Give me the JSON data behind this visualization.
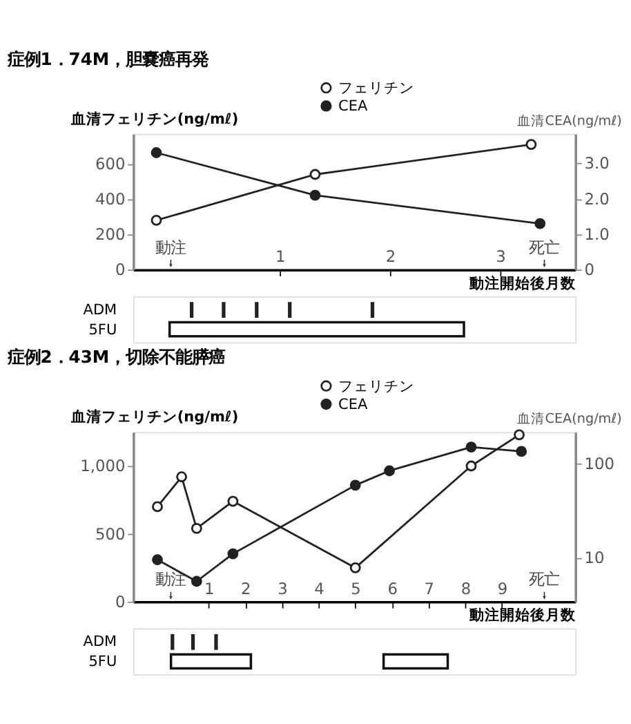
{
  "chart_data": [
    {
      "type": "line",
      "title": "症例1．74M，胆嚢癌再発",
      "ylabel": "血清フェリチン(ng/mℓ)",
      "y2label": "血清CEA(ng/mℓ)",
      "xlabel": "動注開始後月数",
      "xlim": [
        -0.33,
        3.68
      ],
      "xticks": [
        1,
        2,
        3
      ],
      "ylim": [
        0,
        770
      ],
      "yticks": [
        0,
        200,
        400,
        600
      ],
      "y2lim": [
        0,
        3.83
      ],
      "y2ticks": [
        0,
        {
          "value": 1,
          "label": "1.0"
        },
        {
          "value": 2,
          "label": "2.0"
        },
        {
          "value": 3,
          "label": "3.0"
        }
      ],
      "marker": "circle",
      "grid": false,
      "legend": "top",
      "line_style": "solid",
      "series": [
        {
          "name": "フェリチン",
          "color": "#222222",
          "x": [
            -0.12,
            1.32,
            3.28
          ],
          "values": [
            280,
            540,
            710
          ]
        },
        {
          "name": "CEA",
          "color": "#222222",
          "axis": "y2",
          "x": [
            -0.12,
            1.32,
            3.36
          ],
          "values": [
            3.3,
            2.1,
            1.3
          ]
        }
      ],
      "annotations": [
        "動注",
        "死亡"
      ]
    },
    {
      "type": "bar",
      "orientation": "horizontal",
      "categories": [
        "ADM",
        "5FU"
      ],
      "xlim": [
        -0.33,
        3.68
      ],
      "tick_labels": "y",
      "series": [
        {
          "color": "#ffffff",
          "base": [
            null,
            0
          ],
          "values": [
            null,
            2.67
          ]
        }
      ],
      "ref_lines": [
        {
          "axis": "x",
          "value": 0.2
        },
        {
          "axis": "x",
          "value": 0.49
        },
        {
          "axis": "x",
          "value": 0.79
        },
        {
          "axis": "x",
          "value": 1.09
        },
        {
          "axis": "x",
          "value": 1.84
        }
      ]
    },
    {
      "type": "line",
      "title": "症例2．43M，切除不能膵癌",
      "ylabel": "血清フェリチン(ng/mℓ)",
      "y2label": "血清CEA(ng/mℓ)",
      "xlabel": "動注開始後月数",
      "xlim": [
        -1.06,
        11
      ],
      "xticks": [
        1,
        2,
        3,
        4,
        5,
        6,
        7,
        8,
        9
      ],
      "ylim": [
        0,
        1250
      ],
      "yticks": [
        0,
        500,
        {
          "value": 1000,
          "label": "1,000"
        }
      ],
      "y2lim": [
        3.4,
        217
      ],
      "y2ticks": [
        10,
        100
      ],
      "log": "y2",
      "marker": "circle",
      "grid": false,
      "legend": "top",
      "line_style": "solid",
      "series": [
        {
          "name": "フェリチン",
          "color": "#222222",
          "x": [
            -0.4,
            0.26,
            0.67,
            1.66,
            5.0,
            8.16,
            9.47
          ],
          "values": [
            700,
            920,
            540,
            740,
            250,
            1000,
            1230
          ]
        },
        {
          "name": "CEA",
          "color": "#222222",
          "axis": "y2",
          "x": [
            -0.4,
            0.67,
            1.66,
            5.0,
            5.93,
            8.16,
            9.53
          ],
          "values": [
            9.5,
            5.6,
            11,
            59,
            84,
            150,
            135
          ]
        }
      ],
      "annotations": [
        "動注",
        "死亡"
      ]
    },
    {
      "type": "bar",
      "orientation": "horizontal",
      "categories": [
        "ADM",
        "5FU"
      ],
      "xlim": [
        -1.06,
        11
      ],
      "tick_labels": "y",
      "series": [
        {
          "color": "#ffffff",
          "base": [
            null,
            -0.03
          ],
          "values": [
            null,
            2.18
          ]
        },
        {
          "color": "#ffffff",
          "base": [
            null,
            5.77
          ],
          "values": [
            null,
            1.75
          ]
        }
      ],
      "ref_lines": [
        {
          "axis": "x",
          "value": 0.01
        },
        {
          "axis": "x",
          "value": 0.57
        },
        {
          "axis": "x",
          "value": 1.2
        }
      ]
    }
  ]
}
